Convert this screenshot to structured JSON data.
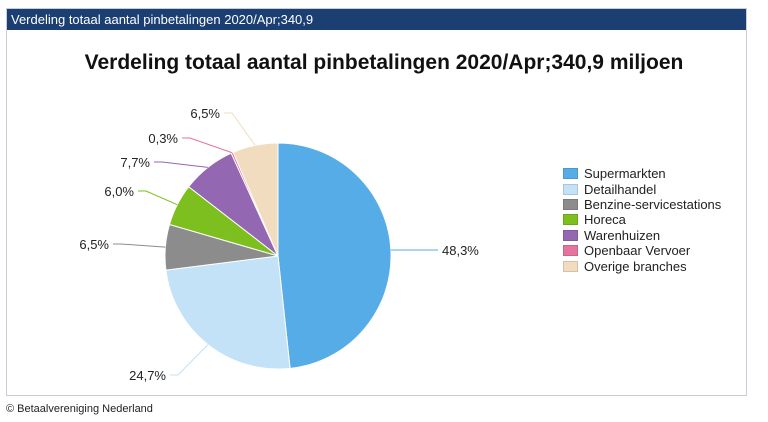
{
  "header": {
    "title": "Verdeling totaal aantal pinbetalingen 2020/Apr;340,9"
  },
  "footer": {
    "copyright": "© Betaalvereniging Nederland"
  },
  "chart_data": {
    "type": "pie",
    "title": "Verdeling totaal aantal pinbetalingen 2020/Apr;340,9 miljoen",
    "legend_position": "right",
    "start_angle": "12 o'clock",
    "direction": "clockwise",
    "slices": [
      {
        "name": "Supermarkten",
        "value": 48.3,
        "label": "48,3%",
        "color": "#56ace6"
      },
      {
        "name": "Detailhandel",
        "value": 24.7,
        "label": "24,7%",
        "color": "#c3e1f7"
      },
      {
        "name": "Benzine-servicestations",
        "value": 6.5,
        "label": "6,5%",
        "color": "#8c8c8c"
      },
      {
        "name": "Horeca",
        "value": 6.0,
        "label": "6,0%",
        "color": "#7cbf1f"
      },
      {
        "name": "Warenhuizen",
        "value": 7.7,
        "label": "7,7%",
        "color": "#9467b3"
      },
      {
        "name": "Openbaar Vervoer",
        "value": 0.3,
        "label": "0,3%",
        "color": "#e4739e"
      },
      {
        "name": "Overige branches",
        "value": 6.5,
        "label": "6,5%",
        "color": "#f2dcc0"
      }
    ]
  }
}
